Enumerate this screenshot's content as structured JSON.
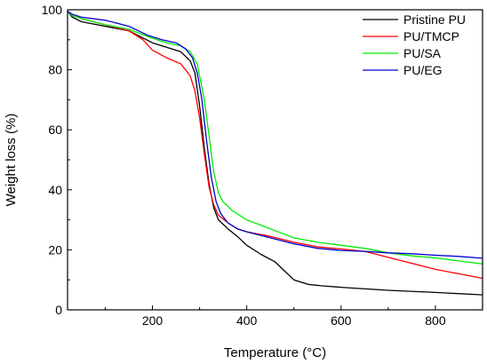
{
  "chart_data": {
    "type": "line",
    "title": "",
    "xlabel": "Temperature (°C)",
    "ylabel": "Weight loss (%)",
    "xlim": [
      20,
      900
    ],
    "ylim": [
      0,
      100
    ],
    "x_ticks": [
      200,
      400,
      600,
      800
    ],
    "y_ticks": [
      0,
      20,
      40,
      60,
      80,
      100
    ],
    "grid": false,
    "legend_position": "top-right",
    "series": [
      {
        "name": "Pristine PU",
        "color": "#000000",
        "points": [
          [
            20,
            99.5
          ],
          [
            30,
            97.5
          ],
          [
            50,
            96
          ],
          [
            100,
            94.5
          ],
          [
            150,
            93
          ],
          [
            200,
            89
          ],
          [
            230,
            87.5
          ],
          [
            260,
            86
          ],
          [
            280,
            83
          ],
          [
            290,
            79
          ],
          [
            300,
            68
          ],
          [
            310,
            54
          ],
          [
            320,
            42
          ],
          [
            330,
            34
          ],
          [
            340,
            30
          ],
          [
            360,
            27
          ],
          [
            380,
            24.5
          ],
          [
            400,
            21.5
          ],
          [
            430,
            18.5
          ],
          [
            460,
            16
          ],
          [
            480,
            13
          ],
          [
            500,
            10
          ],
          [
            530,
            8.5
          ],
          [
            560,
            8
          ],
          [
            600,
            7.5
          ],
          [
            700,
            6.5
          ],
          [
            800,
            5.8
          ],
          [
            900,
            5
          ]
        ]
      },
      {
        "name": "PU/TMCP",
        "color": "#ff0000",
        "points": [
          [
            20,
            99.5
          ],
          [
            30,
            98
          ],
          [
            50,
            97
          ],
          [
            100,
            95
          ],
          [
            150,
            93
          ],
          [
            180,
            90
          ],
          [
            200,
            86.5
          ],
          [
            230,
            84
          ],
          [
            260,
            82
          ],
          [
            280,
            78
          ],
          [
            290,
            73
          ],
          [
            300,
            64
          ],
          [
            310,
            52
          ],
          [
            320,
            41
          ],
          [
            330,
            35
          ],
          [
            340,
            31.5
          ],
          [
            360,
            29
          ],
          [
            380,
            27
          ],
          [
            400,
            26
          ],
          [
            450,
            24.5
          ],
          [
            500,
            22.5
          ],
          [
            550,
            21
          ],
          [
            600,
            20.3
          ],
          [
            650,
            19.5
          ],
          [
            700,
            17.5
          ],
          [
            750,
            15.5
          ],
          [
            800,
            13.5
          ],
          [
            850,
            12
          ],
          [
            900,
            10.5
          ]
        ]
      },
      {
        "name": "PU/SA",
        "color": "#00ee00",
        "points": [
          [
            20,
            99.5
          ],
          [
            30,
            98
          ],
          [
            50,
            97
          ],
          [
            100,
            95
          ],
          [
            150,
            93.5
          ],
          [
            200,
            90.5
          ],
          [
            230,
            89
          ],
          [
            260,
            88
          ],
          [
            280,
            86
          ],
          [
            295,
            82
          ],
          [
            310,
            70
          ],
          [
            320,
            58
          ],
          [
            330,
            46
          ],
          [
            340,
            39
          ],
          [
            350,
            36
          ],
          [
            370,
            33
          ],
          [
            400,
            30
          ],
          [
            450,
            27
          ],
          [
            500,
            24
          ],
          [
            550,
            22.5
          ],
          [
            600,
            21.5
          ],
          [
            650,
            20.5
          ],
          [
            700,
            19
          ],
          [
            750,
            18
          ],
          [
            800,
            17.3
          ],
          [
            850,
            16.3
          ],
          [
            900,
            15.3
          ]
        ]
      },
      {
        "name": "PU/EG",
        "color": "#0000cc",
        "points": [
          [
            20,
            99.5
          ],
          [
            30,
            98.5
          ],
          [
            50,
            97.5
          ],
          [
            100,
            96.5
          ],
          [
            150,
            94.5
          ],
          [
            190,
            91.5
          ],
          [
            220,
            90
          ],
          [
            250,
            89
          ],
          [
            270,
            87
          ],
          [
            285,
            84
          ],
          [
            295,
            79
          ],
          [
            305,
            70
          ],
          [
            315,
            56
          ],
          [
            325,
            44
          ],
          [
            335,
            36
          ],
          [
            345,
            32
          ],
          [
            360,
            29
          ],
          [
            380,
            27
          ],
          [
            400,
            26
          ],
          [
            450,
            24
          ],
          [
            500,
            22
          ],
          [
            550,
            20.5
          ],
          [
            600,
            19.8
          ],
          [
            650,
            19.5
          ],
          [
            700,
            19
          ],
          [
            750,
            18.7
          ],
          [
            800,
            18.2
          ],
          [
            850,
            17.8
          ],
          [
            900,
            17.2
          ]
        ]
      }
    ]
  }
}
